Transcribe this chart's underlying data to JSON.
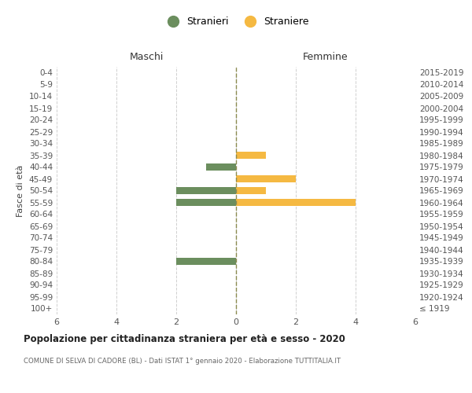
{
  "age_groups": [
    "100+",
    "95-99",
    "90-94",
    "85-89",
    "80-84",
    "75-79",
    "70-74",
    "65-69",
    "60-64",
    "55-59",
    "50-54",
    "45-49",
    "40-44",
    "35-39",
    "30-34",
    "25-29",
    "20-24",
    "15-19",
    "10-14",
    "5-9",
    "0-4"
  ],
  "birth_years": [
    "≤ 1919",
    "1920-1924",
    "1925-1929",
    "1930-1934",
    "1935-1939",
    "1940-1944",
    "1945-1949",
    "1950-1954",
    "1955-1959",
    "1960-1964",
    "1965-1969",
    "1970-1974",
    "1975-1979",
    "1980-1984",
    "1985-1989",
    "1990-1994",
    "1995-1999",
    "2000-2004",
    "2005-2009",
    "2010-2014",
    "2015-2019"
  ],
  "males": [
    0,
    0,
    0,
    0,
    -2,
    0,
    0,
    0,
    0,
    -2,
    -2,
    0,
    -1,
    0,
    0,
    0,
    0,
    0,
    0,
    0,
    0
  ],
  "females": [
    0,
    0,
    0,
    0,
    0,
    0,
    0,
    0,
    0,
    4,
    1,
    2,
    0,
    1,
    0,
    0,
    0,
    0,
    0,
    0,
    0
  ],
  "male_color": "#6b8e5e",
  "female_color": "#f5b942",
  "male_label": "Stranieri",
  "female_label": "Straniere",
  "title": "Popolazione per cittadinanza straniera per età e sesso - 2020",
  "subtitle": "COMUNE DI SELVA DI CADORE (BL) - Dati ISTAT 1° gennaio 2020 - Elaborazione TUTTITALIA.IT",
  "xlabel_left": "Maschi",
  "xlabel_right": "Femmine",
  "ylabel_left": "Fasce di età",
  "xlim": [
    -6,
    6
  ],
  "xticks": [
    -6,
    -4,
    -2,
    0,
    2,
    4,
    6
  ],
  "xticklabels": [
    "6",
    "4",
    "2",
    "0",
    "2",
    "4",
    "6"
  ],
  "background_color": "#ffffff",
  "grid_color": "#d0d0d0",
  "vline_color": "#8B8B50"
}
